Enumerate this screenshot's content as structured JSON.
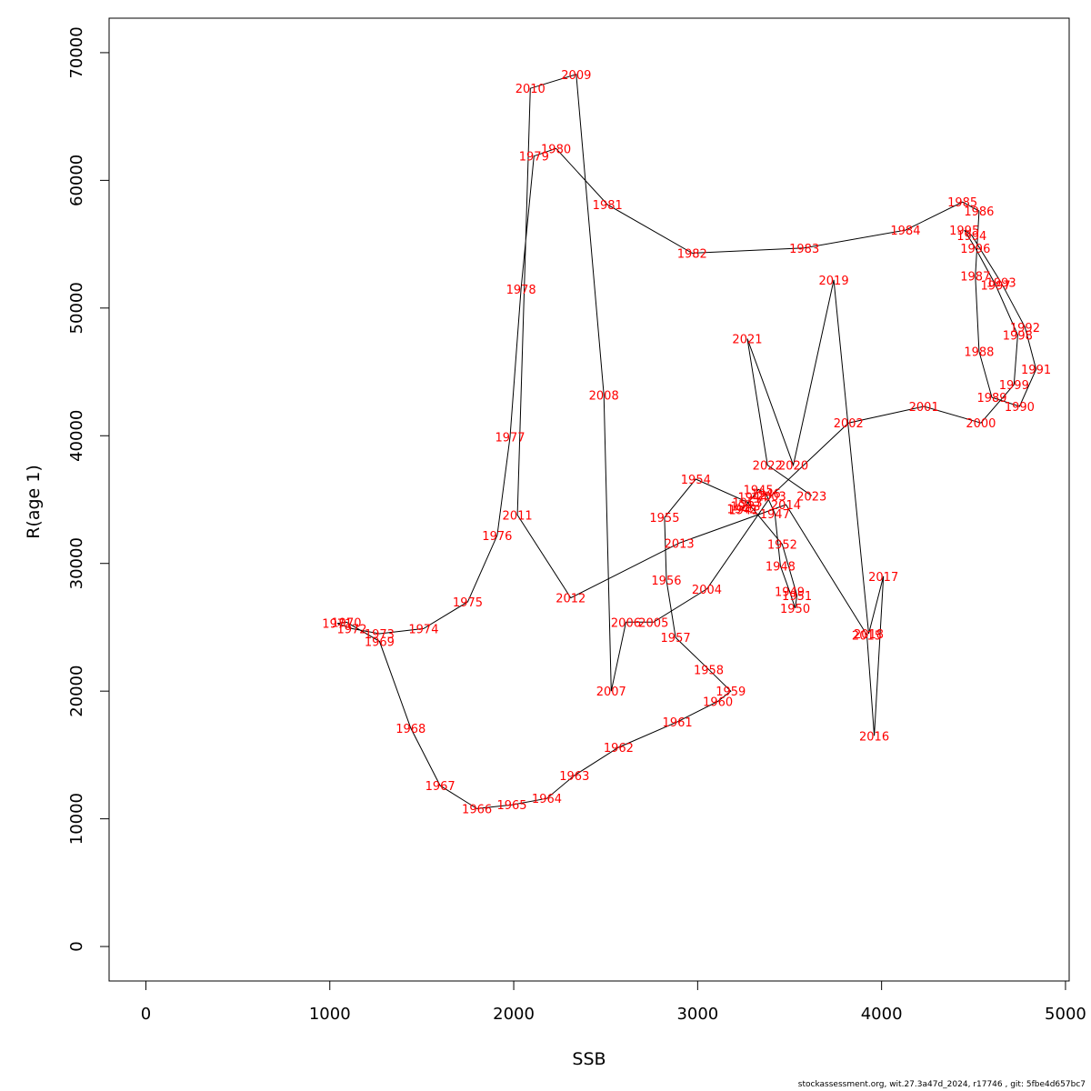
{
  "chart_data": {
    "type": "line",
    "xlabel": "SSB",
    "ylabel": "R(age 1)",
    "xlim": [
      -200,
      5020
    ],
    "ylim": [
      -2700,
      72700
    ],
    "x_ticks": [
      0,
      1000,
      2000,
      3000,
      4000,
      5000
    ],
    "x_tick_labels": [
      "0",
      "1000",
      "2000",
      "3000",
      "4000",
      "5000"
    ],
    "y_ticks": [
      0,
      10000,
      20000,
      30000,
      40000,
      50000,
      60000,
      70000
    ],
    "y_tick_labels": [
      "0",
      "10000",
      "20000",
      "30000",
      "40000",
      "50000",
      "60000",
      "70000"
    ],
    "grid": false,
    "line_color": "#000000",
    "label_color": "#ff0000",
    "points": [
      {
        "year": "1941",
        "ssb": 3250,
        "rec": 34200
      },
      {
        "year": "1942",
        "ssb": 3240,
        "rec": 34300
      },
      {
        "year": "1943",
        "ssb": 3260,
        "rec": 34500
      },
      {
        "year": "1944",
        "ssb": 3300,
        "rec": 35200
      },
      {
        "year": "1945",
        "ssb": 3330,
        "rec": 35800
      },
      {
        "year": "1946",
        "ssb": 3370,
        "rec": 35500
      },
      {
        "year": "1947",
        "ssb": 3420,
        "rec": 33900
      },
      {
        "year": "1948",
        "ssb": 3450,
        "rec": 29800
      },
      {
        "year": "1949",
        "ssb": 3500,
        "rec": 27800
      },
      {
        "year": "1950",
        "ssb": 3530,
        "rec": 26500
      },
      {
        "year": "1951",
        "ssb": 3540,
        "rec": 27500
      },
      {
        "year": "1952",
        "ssb": 3460,
        "rec": 31500
      },
      {
        "year": "1953",
        "ssb": 3270,
        "rec": 34800
      },
      {
        "year": "1954",
        "ssb": 2990,
        "rec": 36600
      },
      {
        "year": "1955",
        "ssb": 2820,
        "rec": 33600
      },
      {
        "year": "1956",
        "ssb": 2830,
        "rec": 28700
      },
      {
        "year": "1957",
        "ssb": 2880,
        "rec": 24200
      },
      {
        "year": "1958",
        "ssb": 3060,
        "rec": 21700
      },
      {
        "year": "1959",
        "ssb": 3180,
        "rec": 20000
      },
      {
        "year": "1960",
        "ssb": 3110,
        "rec": 19200
      },
      {
        "year": "1961",
        "ssb": 2890,
        "rec": 17600
      },
      {
        "year": "1962",
        "ssb": 2570,
        "rec": 15600
      },
      {
        "year": "1963",
        "ssb": 2330,
        "rec": 13400
      },
      {
        "year": "1964",
        "ssb": 2180,
        "rec": 11600
      },
      {
        "year": "1965",
        "ssb": 1990,
        "rec": 11100
      },
      {
        "year": "1966",
        "ssb": 1800,
        "rec": 10800
      },
      {
        "year": "1967",
        "ssb": 1600,
        "rec": 12600
      },
      {
        "year": "1968",
        "ssb": 1440,
        "rec": 17100
      },
      {
        "year": "1969",
        "ssb": 1270,
        "rec": 23900
      },
      {
        "year": "1970",
        "ssb": 1090,
        "rec": 25400
      },
      {
        "year": "1971",
        "ssb": 1040,
        "rec": 25300
      },
      {
        "year": "1972",
        "ssb": 1120,
        "rec": 24900
      },
      {
        "year": "1973",
        "ssb": 1270,
        "rec": 24500
      },
      {
        "year": "1974",
        "ssb": 1510,
        "rec": 24900
      },
      {
        "year": "1975",
        "ssb": 1750,
        "rec": 27000
      },
      {
        "year": "1976",
        "ssb": 1910,
        "rec": 32200
      },
      {
        "year": "1977",
        "ssb": 1980,
        "rec": 39900
      },
      {
        "year": "1978",
        "ssb": 2040,
        "rec": 51500
      },
      {
        "year": "1979",
        "ssb": 2110,
        "rec": 61900
      },
      {
        "year": "1980",
        "ssb": 2230,
        "rec": 62500
      },
      {
        "year": "1981",
        "ssb": 2510,
        "rec": 58100
      },
      {
        "year": "1982",
        "ssb": 2970,
        "rec": 54300
      },
      {
        "year": "1983",
        "ssb": 3580,
        "rec": 54700
      },
      {
        "year": "1984",
        "ssb": 4130,
        "rec": 56100
      },
      {
        "year": "1985",
        "ssb": 4440,
        "rec": 58300
      },
      {
        "year": "1986",
        "ssb": 4530,
        "rec": 57600
      },
      {
        "year": "1987",
        "ssb": 4510,
        "rec": 52500
      },
      {
        "year": "1988",
        "ssb": 4530,
        "rec": 46600
      },
      {
        "year": "1989",
        "ssb": 4600,
        "rec": 43000
      },
      {
        "year": "1990",
        "ssb": 4750,
        "rec": 42300
      },
      {
        "year": "1991",
        "ssb": 4840,
        "rec": 45200
      },
      {
        "year": "1992",
        "ssb": 4780,
        "rec": 48500
      },
      {
        "year": "1993",
        "ssb": 4650,
        "rec": 52000
      },
      {
        "year": "1994",
        "ssb": 4490,
        "rec": 55700
      },
      {
        "year": "1995",
        "ssb": 4450,
        "rec": 56100
      },
      {
        "year": "1996",
        "ssb": 4510,
        "rec": 54700
      },
      {
        "year": "1997",
        "ssb": 4620,
        "rec": 51800
      },
      {
        "year": "1998",
        "ssb": 4740,
        "rec": 47900
      },
      {
        "year": "1999",
        "ssb": 4720,
        "rec": 44000
      },
      {
        "year": "2000",
        "ssb": 4540,
        "rec": 41000
      },
      {
        "year": "2001",
        "ssb": 4230,
        "rec": 42300
      },
      {
        "year": "2002",
        "ssb": 3820,
        "rec": 41000
      },
      {
        "year": "2003",
        "ssb": 3400,
        "rec": 35300
      },
      {
        "year": "2004",
        "ssb": 3050,
        "rec": 28000
      },
      {
        "year": "2005",
        "ssb": 2760,
        "rec": 25400
      },
      {
        "year": "2006",
        "ssb": 2610,
        "rec": 25400
      },
      {
        "year": "2007",
        "ssb": 2530,
        "rec": 20000
      },
      {
        "year": "2008",
        "ssb": 2490,
        "rec": 43200
      },
      {
        "year": "2009",
        "ssb": 2340,
        "rec": 68300
      },
      {
        "year": "2010",
        "ssb": 2090,
        "rec": 67200
      },
      {
        "year": "2011",
        "ssb": 2020,
        "rec": 33800
      },
      {
        "year": "2012",
        "ssb": 2310,
        "rec": 27300
      },
      {
        "year": "2013",
        "ssb": 2900,
        "rec": 31600
      },
      {
        "year": "2014",
        "ssb": 3480,
        "rec": 34600
      },
      {
        "year": "2015",
        "ssb": 3920,
        "rec": 24400
      },
      {
        "year": "2016",
        "ssb": 3960,
        "rec": 16500
      },
      {
        "year": "2017",
        "ssb": 4010,
        "rec": 29000
      },
      {
        "year": "2018",
        "ssb": 3930,
        "rec": 24500
      },
      {
        "year": "2019",
        "ssb": 3740,
        "rec": 52200
      },
      {
        "year": "2020",
        "ssb": 3520,
        "rec": 37700
      },
      {
        "year": "2021",
        "ssb": 3270,
        "rec": 47600
      },
      {
        "year": "2022",
        "ssb": 3380,
        "rec": 37700
      },
      {
        "year": "2023",
        "ssb": 3620,
        "rec": 35300
      }
    ]
  },
  "footer": {
    "text": "stockassessment.org, wit.27.3a47d_2024, r17746 , git: 5fbe4d657bc7"
  }
}
